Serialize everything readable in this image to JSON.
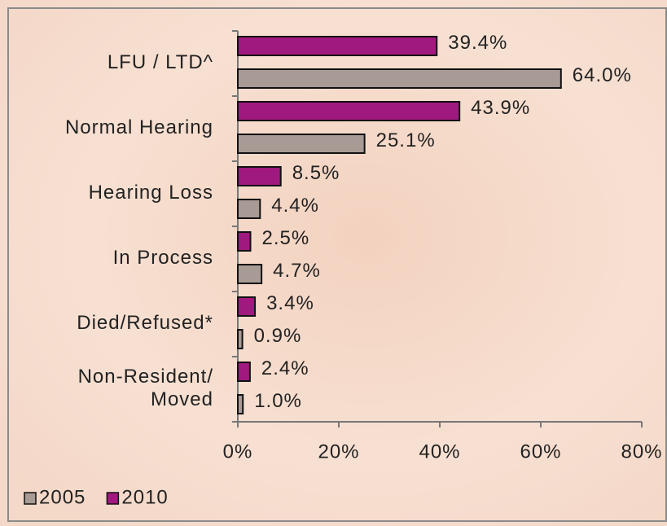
{
  "chart_data": {
    "type": "bar",
    "orientation": "horizontal",
    "categories": [
      "LFU / LTD^",
      "Normal Hearing",
      "Hearing Loss",
      "In Process",
      "Died/Refused*",
      "Non-Resident/\nMoved"
    ],
    "series": [
      {
        "name": "2010",
        "color": "#a0197f",
        "values": [
          39.4,
          43.9,
          8.5,
          2.5,
          3.4,
          2.4
        ],
        "value_labels": [
          "39.4%",
          "43.9%",
          "8.5%",
          "2.5%",
          "3.4%",
          "2.4%"
        ]
      },
      {
        "name": "2005",
        "color": "#a89a94",
        "values": [
          64.0,
          25.1,
          4.4,
          4.7,
          0.9,
          1.0
        ],
        "value_labels": [
          "64.0%",
          "25.1%",
          "4.4%",
          "4.7%",
          "0.9%",
          "1.0%"
        ]
      }
    ],
    "xlim": [
      0,
      80
    ],
    "xticks": [
      {
        "value": 0,
        "label": "0%"
      },
      {
        "value": 20,
        "label": "20%"
      },
      {
        "value": 40,
        "label": "40%"
      },
      {
        "value": 60,
        "label": "60%"
      },
      {
        "value": 80,
        "label": "80%"
      }
    ],
    "legend": "bottom-left"
  }
}
